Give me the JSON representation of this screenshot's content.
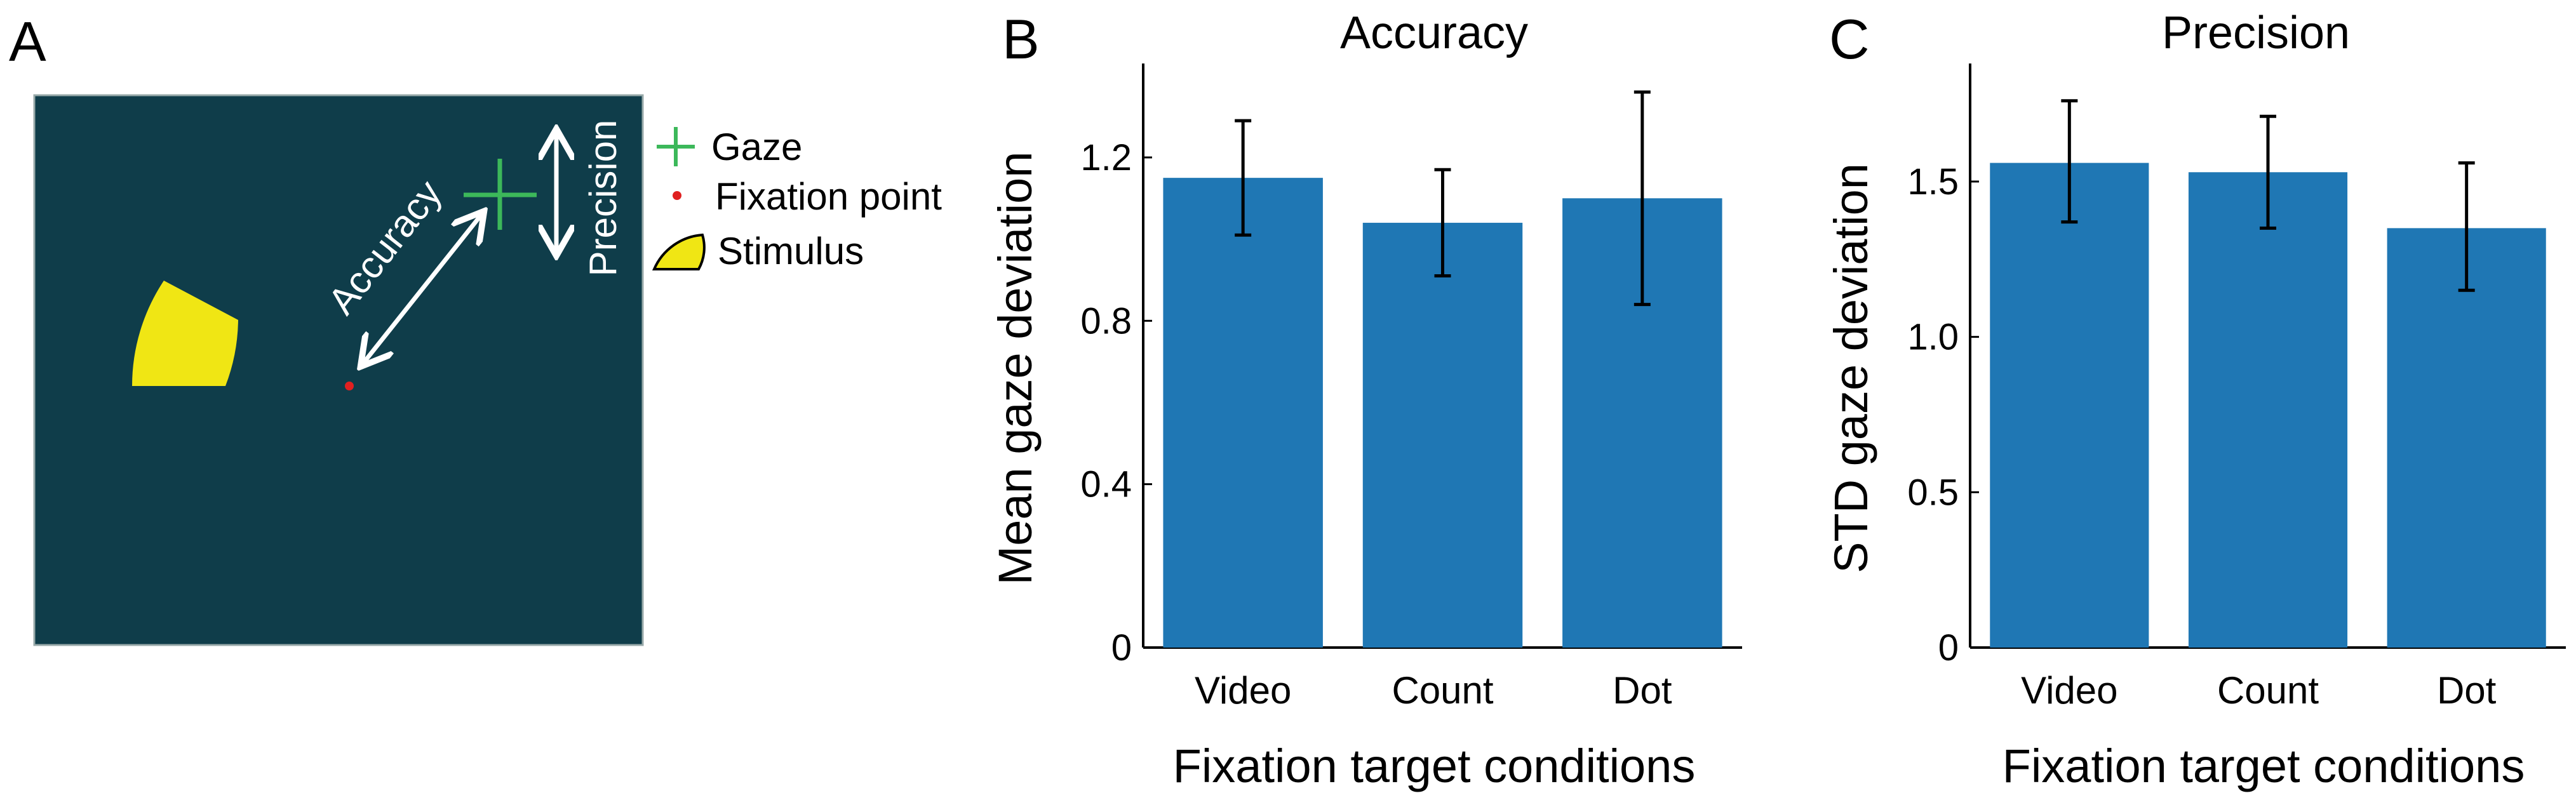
{
  "panels": {
    "a": {
      "letter": "A",
      "background_color": "#0f3d4a",
      "diagram_labels": {
        "accuracy": "Accuracy",
        "precision": "Precision"
      },
      "legend": [
        {
          "icon": "cross-icon",
          "label": "Gaze",
          "color": "#3cb85a"
        },
        {
          "icon": "dot-icon",
          "label": "Fixation point",
          "color": "#e02020"
        },
        {
          "icon": "wedge-icon",
          "label": "Stimulus",
          "color": "#f0e614"
        }
      ]
    },
    "b": {
      "letter": "B"
    },
    "c": {
      "letter": "C"
    }
  },
  "chart_data": [
    {
      "type": "bar",
      "title": "Accuracy",
      "xlabel": "Fixation target conditions",
      "ylabel": "Mean gaze deviation",
      "categories": [
        "Video",
        "Count",
        "Dot"
      ],
      "values": [
        1.15,
        1.04,
        1.1
      ],
      "error_low": [
        1.01,
        0.91,
        0.84
      ],
      "error_high": [
        1.29,
        1.17,
        1.36
      ],
      "ylim": [
        0,
        1.43
      ],
      "yticks": [
        0,
        0.4,
        0.8,
        1.2
      ],
      "ytick_labels": [
        "0",
        "0.4",
        "0.8",
        "1.2"
      ],
      "bar_color": "#1f77b4",
      "grid": false
    },
    {
      "type": "bar",
      "title": "Precision",
      "xlabel": "Fixation target conditions",
      "ylabel": "STD gaze deviation",
      "categories": [
        "Video",
        "Count",
        "Dot"
      ],
      "values": [
        1.56,
        1.53,
        1.35
      ],
      "error_low": [
        1.37,
        1.35,
        1.15
      ],
      "error_high": [
        1.76,
        1.71,
        1.56
      ],
      "ylim": [
        0,
        1.88
      ],
      "yticks": [
        0,
        0.5,
        1.0,
        1.5
      ],
      "ytick_labels": [
        "0",
        "0.5",
        "1.0",
        "1.5"
      ],
      "bar_color": "#1f77b4",
      "grid": false
    }
  ]
}
